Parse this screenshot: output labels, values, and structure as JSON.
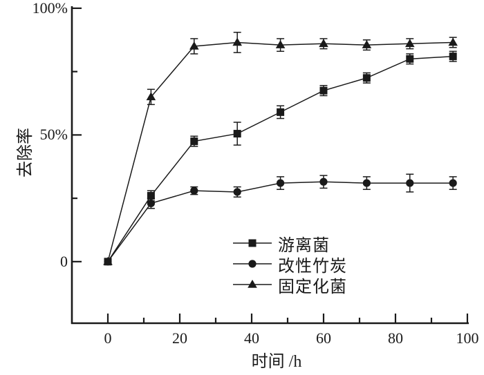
{
  "figure": {
    "background": "#ffffff",
    "axis_color": "#1a1a1a"
  },
  "chart_data": {
    "type": "line",
    "title": "",
    "xlabel": "时间 /h",
    "ylabel": "去除率",
    "grid": false,
    "legend_position": "inside-center-right",
    "xlim": [
      -10,
      100.2
    ],
    "ylim": [
      -24.3,
      100.8
    ],
    "x": [
      0,
      12,
      24,
      36,
      48,
      60,
      72,
      84,
      96
    ],
    "series": [
      {
        "name": "游离菌",
        "marker": "square",
        "color": "#1a1a1a",
        "values": [
          0,
          26,
          47.5,
          50.5,
          59,
          67.5,
          72.5,
          80,
          81
        ],
        "errors": [
          0,
          2,
          2,
          4.5,
          2.5,
          2,
          2,
          2,
          2
        ]
      },
      {
        "name": "改性竹炭",
        "marker": "circle",
        "color": "#1a1a1a",
        "values": [
          0,
          23,
          28,
          27.5,
          31,
          31.5,
          31,
          31,
          31
        ],
        "errors": [
          0,
          2,
          1.5,
          2,
          2.5,
          2.5,
          2.5,
          3.5,
          2.5
        ]
      },
      {
        "name": "固定化菌",
        "marker": "triangle",
        "color": "#1a1a1a",
        "values": [
          0,
          65,
          85,
          86.5,
          85.5,
          86,
          85.5,
          86,
          86.5
        ],
        "errors": [
          0,
          3,
          3,
          4,
          2.5,
          2,
          2,
          2,
          2
        ]
      }
    ],
    "x_ticks": {
      "major": [
        {
          "value": 0,
          "label": "0"
        },
        {
          "value": 20,
          "label": "20"
        },
        {
          "value": 40,
          "label": "40"
        },
        {
          "value": 60,
          "label": "60"
        },
        {
          "value": 80,
          "label": "80"
        },
        {
          "value": 100,
          "label": "100"
        }
      ],
      "minor": [
        10,
        30,
        50,
        70,
        90
      ]
    },
    "y_ticks": {
      "major": [
        {
          "value": 0,
          "label": "0"
        },
        {
          "value": 50,
          "label": "50%"
        },
        {
          "value": 100,
          "label": "100%"
        }
      ],
      "minor": [
        25,
        75
      ]
    }
  }
}
